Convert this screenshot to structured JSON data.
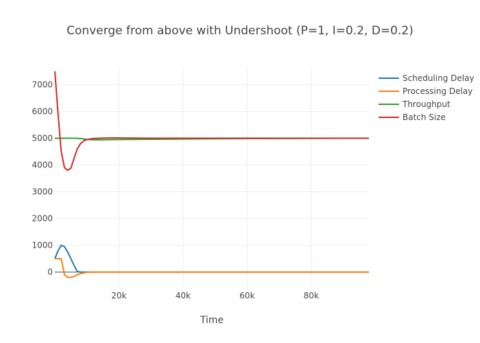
{
  "chart_data": {
    "type": "line",
    "title": "Converge from above with Undershoot (P=1, I=0.2, D=0.2)",
    "xlabel": "Time",
    "ylabel": "",
    "xlim": [
      0,
      98000
    ],
    "ylim": [
      -600,
      7600
    ],
    "x_ticks": [
      20000,
      40000,
      60000,
      80000
    ],
    "x_tick_labels": [
      "20k",
      "40k",
      "60k",
      "80k"
    ],
    "y_ticks": [
      0,
      1000,
      2000,
      3000,
      4000,
      5000,
      6000,
      7000
    ],
    "y_tick_labels": [
      "0",
      "1000",
      "2000",
      "3000",
      "4000",
      "5000",
      "6000",
      "7000"
    ],
    "grid": true,
    "legend_position": "top-right",
    "series": [
      {
        "name": "Scheduling Delay",
        "color": "#1f77b4",
        "x": [
          0,
          1000,
          2000,
          3000,
          4000,
          5000,
          6000,
          7000,
          8000,
          9000,
          10000,
          12000,
          15000,
          20000,
          30000,
          50000,
          70000,
          98000
        ],
        "y": [
          500,
          800,
          1000,
          950,
          750,
          500,
          250,
          20,
          0,
          0,
          0,
          0,
          0,
          0,
          0,
          0,
          0,
          0
        ]
      },
      {
        "name": "Processing Delay",
        "color": "#ff7f0e",
        "x": [
          0,
          1000,
          2000,
          3000,
          4000,
          5000,
          6000,
          7000,
          8000,
          9000,
          10000,
          12000,
          14000,
          17000,
          20000,
          30000,
          50000,
          70000,
          98000
        ],
        "y": [
          500,
          500,
          500,
          -100,
          -200,
          -200,
          -160,
          -100,
          -60,
          -30,
          -10,
          0,
          0,
          0,
          0,
          0,
          0,
          0,
          0
        ]
      },
      {
        "name": "Throughput",
        "color": "#2ca02c",
        "x": [
          0,
          2000,
          4000,
          6000,
          8000,
          10000,
          12000,
          15000,
          20000,
          30000,
          40000,
          50000,
          60000,
          70000,
          80000,
          90000,
          98000
        ],
        "y": [
          5000,
          5000,
          5000,
          5000,
          4990,
          4950,
          4940,
          4940,
          4950,
          4960,
          4970,
          4980,
          4985,
          4990,
          4995,
          5000,
          5000
        ]
      },
      {
        "name": "Batch Size",
        "color": "#d62728",
        "x": [
          0,
          1000,
          2000,
          3000,
          4000,
          5000,
          6000,
          7000,
          8000,
          9000,
          10000,
          12000,
          14000,
          16000,
          20000,
          30000,
          50000,
          70000,
          98000
        ],
        "y": [
          7500,
          5900,
          4500,
          3900,
          3800,
          3880,
          4250,
          4600,
          4800,
          4900,
          4950,
          4990,
          5000,
          5010,
          5010,
          5000,
          5000,
          5000,
          5000
        ]
      }
    ]
  }
}
